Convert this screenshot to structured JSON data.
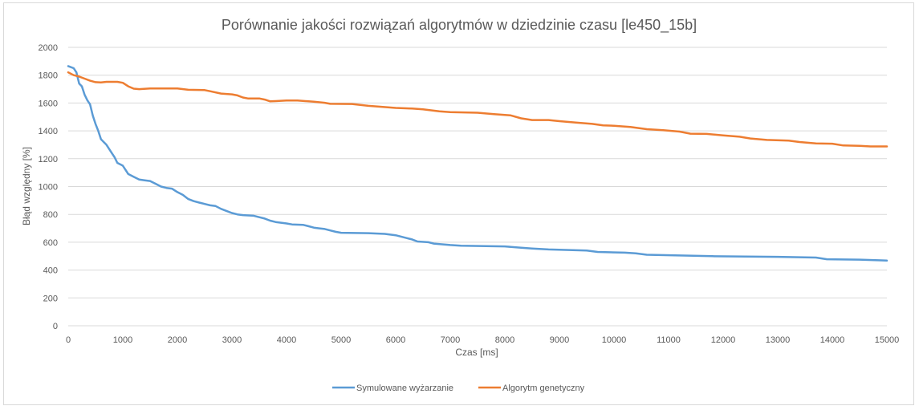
{
  "chart_data": {
    "type": "line",
    "title": "Porównanie jakości rozwiązań algorytmów w dziedzinie czasu [le450_15b]",
    "xlabel": "Czas [ms]",
    "ylabel": "Błąd względny [%]",
    "xlim": [
      0,
      15000
    ],
    "ylim": [
      0,
      2000
    ],
    "x_ticks": [
      0,
      1000,
      2000,
      3000,
      4000,
      5000,
      6000,
      7000,
      8000,
      9000,
      10000,
      11000,
      12000,
      13000,
      14000,
      15000
    ],
    "y_ticks": [
      0,
      200,
      400,
      600,
      800,
      1000,
      1200,
      1400,
      1600,
      1800,
      2000
    ],
    "grid": "horizontal",
    "legend_position": "bottom",
    "series": [
      {
        "name": "Symulowane wyżarzanie",
        "color": "#5b9bd5",
        "points": [
          [
            0,
            1865
          ],
          [
            100,
            1850
          ],
          [
            150,
            1820
          ],
          [
            200,
            1740
          ],
          [
            250,
            1720
          ],
          [
            300,
            1660
          ],
          [
            350,
            1620
          ],
          [
            400,
            1590
          ],
          [
            450,
            1510
          ],
          [
            500,
            1450
          ],
          [
            550,
            1400
          ],
          [
            600,
            1340
          ],
          [
            650,
            1320
          ],
          [
            700,
            1300
          ],
          [
            750,
            1270
          ],
          [
            800,
            1240
          ],
          [
            850,
            1210
          ],
          [
            900,
            1170
          ],
          [
            950,
            1160
          ],
          [
            1000,
            1150
          ],
          [
            1050,
            1120
          ],
          [
            1100,
            1090
          ],
          [
            1200,
            1070
          ],
          [
            1300,
            1050
          ],
          [
            1400,
            1045
          ],
          [
            1500,
            1040
          ],
          [
            1600,
            1020
          ],
          [
            1700,
            1000
          ],
          [
            1800,
            990
          ],
          [
            1900,
            985
          ],
          [
            2000,
            960
          ],
          [
            2100,
            940
          ],
          [
            2200,
            910
          ],
          [
            2300,
            895
          ],
          [
            2400,
            885
          ],
          [
            2500,
            875
          ],
          [
            2600,
            865
          ],
          [
            2700,
            860
          ],
          [
            2800,
            840
          ],
          [
            2900,
            825
          ],
          [
            3000,
            810
          ],
          [
            3100,
            800
          ],
          [
            3200,
            795
          ],
          [
            3400,
            790
          ],
          [
            3500,
            780
          ],
          [
            3600,
            770
          ],
          [
            3700,
            755
          ],
          [
            3800,
            745
          ],
          [
            3900,
            740
          ],
          [
            4000,
            735
          ],
          [
            4100,
            728
          ],
          [
            4300,
            725
          ],
          [
            4400,
            715
          ],
          [
            4500,
            705
          ],
          [
            4600,
            700
          ],
          [
            4700,
            695
          ],
          [
            4800,
            685
          ],
          [
            4900,
            675
          ],
          [
            5000,
            668
          ],
          [
            5500,
            665
          ],
          [
            5800,
            660
          ],
          [
            6000,
            650
          ],
          [
            6200,
            630
          ],
          [
            6300,
            620
          ],
          [
            6400,
            605
          ],
          [
            6600,
            600
          ],
          [
            6700,
            590
          ],
          [
            7000,
            580
          ],
          [
            7200,
            575
          ],
          [
            8000,
            570
          ],
          [
            8300,
            560
          ],
          [
            8500,
            555
          ],
          [
            8800,
            548
          ],
          [
            9500,
            540
          ],
          [
            9700,
            530
          ],
          [
            10200,
            525
          ],
          [
            10400,
            520
          ],
          [
            10600,
            510
          ],
          [
            11200,
            505
          ],
          [
            11800,
            500
          ],
          [
            13000,
            495
          ],
          [
            13700,
            490
          ],
          [
            13900,
            478
          ],
          [
            14500,
            475
          ],
          [
            14900,
            470
          ],
          [
            15000,
            468
          ]
        ]
      },
      {
        "name": "Algorytm genetyczny",
        "color": "#ed7d31",
        "points": [
          [
            0,
            1820
          ],
          [
            100,
            1800
          ],
          [
            200,
            1790
          ],
          [
            300,
            1775
          ],
          [
            400,
            1760
          ],
          [
            500,
            1750
          ],
          [
            600,
            1748
          ],
          [
            700,
            1752
          ],
          [
            900,
            1752
          ],
          [
            1000,
            1745
          ],
          [
            1100,
            1720
          ],
          [
            1200,
            1703
          ],
          [
            1300,
            1700
          ],
          [
            1500,
            1705
          ],
          [
            2000,
            1705
          ],
          [
            2200,
            1695
          ],
          [
            2500,
            1693
          ],
          [
            2600,
            1685
          ],
          [
            2800,
            1668
          ],
          [
            3000,
            1662
          ],
          [
            3100,
            1655
          ],
          [
            3200,
            1640
          ],
          [
            3300,
            1632
          ],
          [
            3500,
            1633
          ],
          [
            3600,
            1625
          ],
          [
            3700,
            1612
          ],
          [
            3800,
            1614
          ],
          [
            4000,
            1618
          ],
          [
            4200,
            1618
          ],
          [
            4500,
            1610
          ],
          [
            4700,
            1602
          ],
          [
            4800,
            1594
          ],
          [
            5200,
            1593
          ],
          [
            5500,
            1580
          ],
          [
            6000,
            1565
          ],
          [
            6300,
            1560
          ],
          [
            6500,
            1555
          ],
          [
            6800,
            1540
          ],
          [
            7000,
            1535
          ],
          [
            7500,
            1530
          ],
          [
            7800,
            1520
          ],
          [
            8100,
            1512
          ],
          [
            8300,
            1490
          ],
          [
            8500,
            1478
          ],
          [
            8800,
            1478
          ],
          [
            9000,
            1470
          ],
          [
            9300,
            1460
          ],
          [
            9600,
            1450
          ],
          [
            9800,
            1440
          ],
          [
            10000,
            1437
          ],
          [
            10300,
            1428
          ],
          [
            10600,
            1412
          ],
          [
            10900,
            1405
          ],
          [
            11200,
            1395
          ],
          [
            11400,
            1380
          ],
          [
            11700,
            1378
          ],
          [
            12000,
            1368
          ],
          [
            12300,
            1358
          ],
          [
            12500,
            1345
          ],
          [
            12800,
            1335
          ],
          [
            13200,
            1330
          ],
          [
            13400,
            1320
          ],
          [
            13700,
            1310
          ],
          [
            14000,
            1308
          ],
          [
            14200,
            1295
          ],
          [
            14500,
            1293
          ],
          [
            14700,
            1288
          ],
          [
            15000,
            1288
          ]
        ]
      }
    ]
  }
}
